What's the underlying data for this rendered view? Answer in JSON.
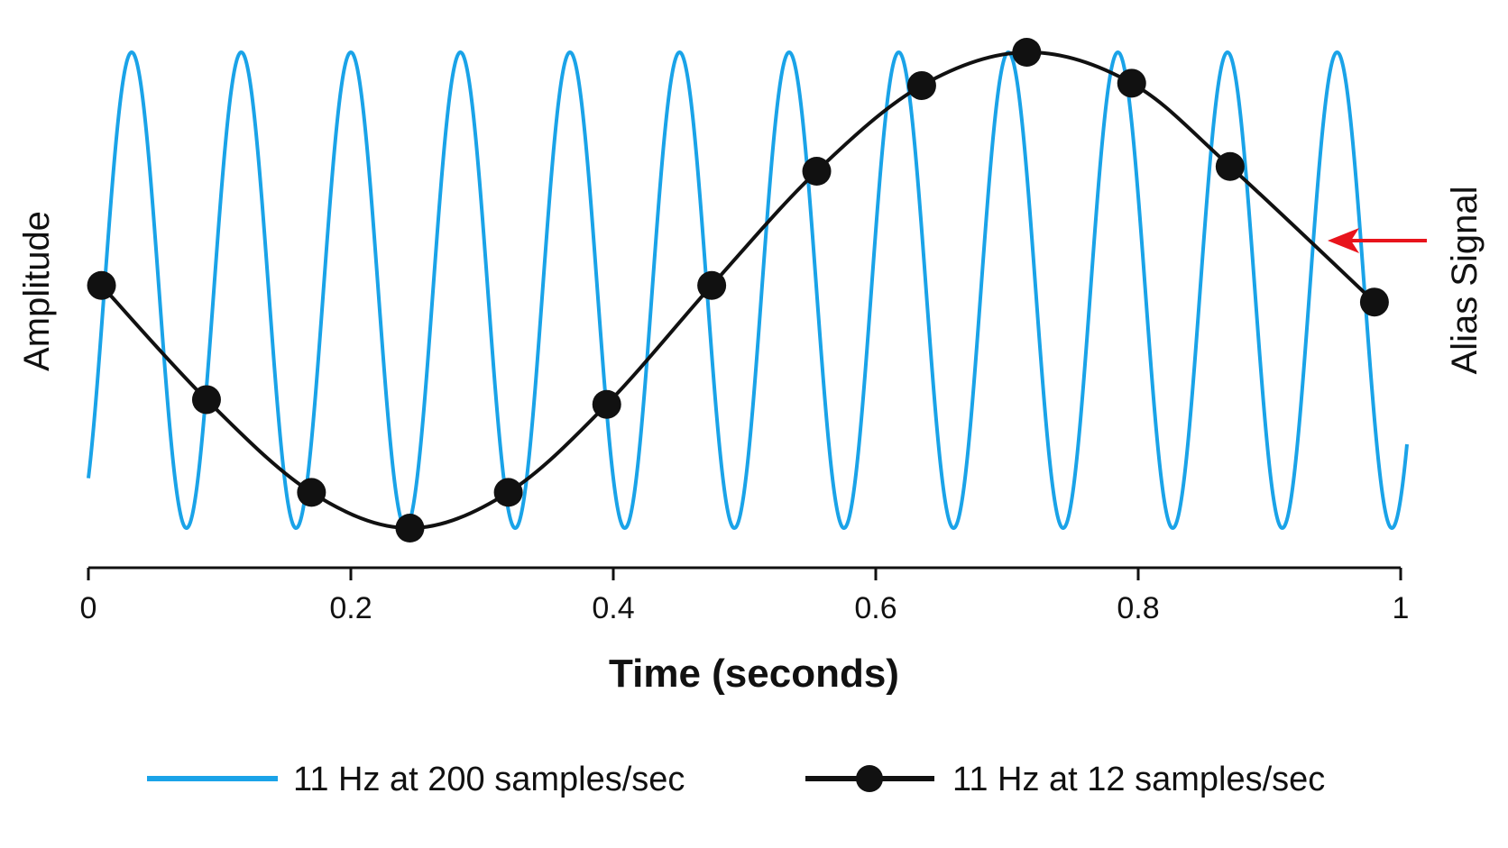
{
  "chart_data": {
    "type": "line",
    "title": "",
    "xlabel": "Time (seconds)",
    "ylabel": "Amplitude",
    "xlim": [
      0,
      1
    ],
    "ylim": [
      -1,
      1
    ],
    "x_ticks": [
      "0",
      "0.2",
      "0.4",
      "0.6",
      "0.8",
      "1"
    ],
    "grid": false,
    "legend_position": "bottom",
    "annotation": {
      "text": "Alias Signal",
      "arrow_color": "#e8141c"
    },
    "series": [
      {
        "name": "11 Hz at 200 samples/sec",
        "color": "#1aa3e8",
        "frequency_hz": 11,
        "sample_rate": 200,
        "marker": "none"
      },
      {
        "name": "11 Hz at 12 samples/sec",
        "color": "#111111",
        "marker": "circle",
        "x": [
          0.01,
          0.09,
          0.17,
          0.245,
          0.32,
          0.395,
          0.475,
          0.555,
          0.635,
          0.715,
          0.795,
          0.87,
          0.98
        ],
        "y": [
          0.02,
          -0.46,
          -0.85,
          -1.0,
          -0.85,
          -0.48,
          0.02,
          0.5,
          0.86,
          1.0,
          0.87,
          0.52,
          -0.05
        ]
      }
    ]
  }
}
